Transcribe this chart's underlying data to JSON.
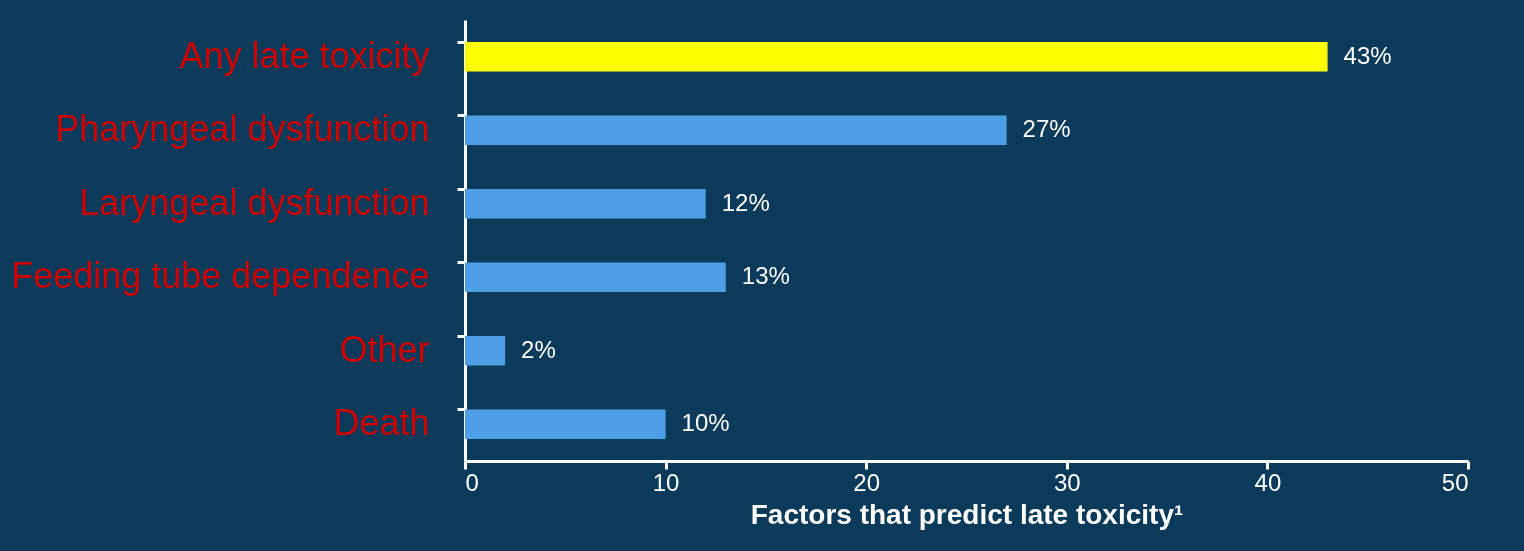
{
  "chart_data": {
    "type": "bar",
    "orientation": "horizontal",
    "xlabel": "Factors that predict late toxicity¹",
    "categories": [
      "Any late toxicity",
      "Pharyngeal dysfunction",
      "Laryngeal dysfunction",
      "Feeding tube dependence",
      "Other",
      "Death"
    ],
    "values": [
      43,
      27,
      12,
      13,
      2,
      10
    ],
    "colors": [
      "#ffff00",
      "#4f9fe6",
      "#4f9fe6",
      "#4f9fe6",
      "#4f9fe6",
      "#4f9fe6"
    ],
    "value_labels": [
      "43%",
      "27%",
      "12%",
      "13%",
      "2%",
      "10%"
    ],
    "xlim": [
      0,
      50
    ],
    "xticks": [
      0,
      10,
      20,
      30,
      40,
      50
    ],
    "grid": false
  }
}
